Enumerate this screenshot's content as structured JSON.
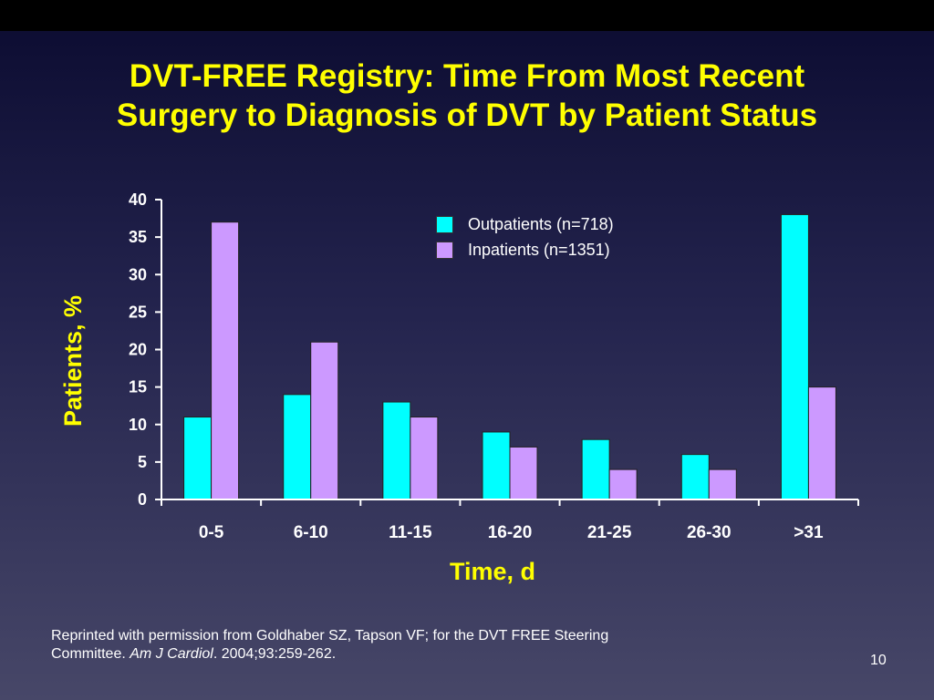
{
  "slide": {
    "title_line1": "DVT-FREE Registry: Time From Most Recent",
    "title_line2": "Surgery to Diagnosis of DVT by Patient Status",
    "citation_line1": "Reprinted with permission from Goldhaber SZ, Tapson VF; for the DVT FREE Steering",
    "citation_line2_prefix": "Committee.",
    "citation_journal": "Am J Cardiol",
    "citation_details": ". 2004;93:259-262.",
    "page_number": "10"
  },
  "chart_data": {
    "type": "bar",
    "xlabel": "Time, d",
    "ylabel": "Patients, %",
    "categories": [
      "0-5",
      "6-10",
      "11-15",
      "16-20",
      "21-25",
      "26-30",
      ">31"
    ],
    "ylim": [
      0,
      40
    ],
    "yticks": [
      0,
      5,
      10,
      15,
      20,
      25,
      30,
      35,
      40
    ],
    "grid": false,
    "legend_position": "top-center",
    "series": [
      {
        "name": "Outpatients (n=718)",
        "color": "#00ffff",
        "values": [
          11,
          14,
          13,
          9,
          8,
          6,
          38
        ]
      },
      {
        "name": "Inpatients (n=1351)",
        "color": "#cc99ff",
        "values": [
          37,
          21,
          11,
          7,
          4,
          4,
          15
        ]
      }
    ]
  }
}
